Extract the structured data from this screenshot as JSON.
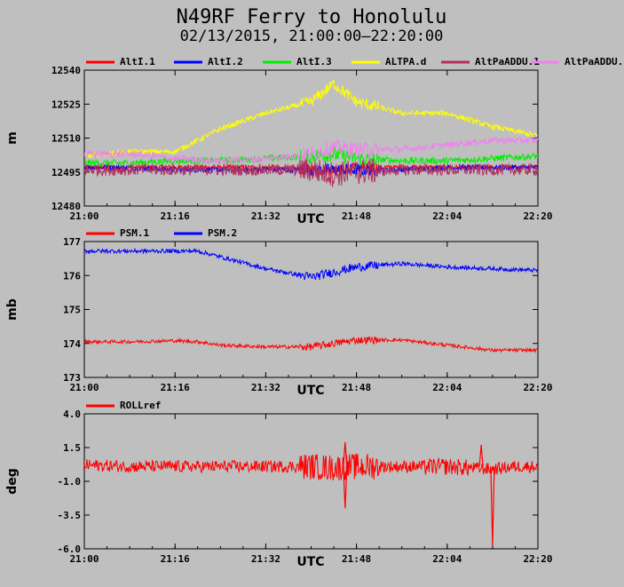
{
  "title": "N49RF Ferry to Honolulu",
  "subtitle": "02/13/2015, 21:00:00–22:20:00",
  "chart_data": [
    {
      "type": "line",
      "ylabel": "m",
      "xlabel": "UTC",
      "ylim": [
        12480,
        12540
      ],
      "yticks": [
        "12540",
        "12525",
        "12510",
        "12495",
        "12480"
      ],
      "xticks": [
        "21:00",
        "21:16",
        "21:32",
        "21:48",
        "22:04",
        "22:20"
      ],
      "x": [
        "21:00",
        "21:08",
        "21:16",
        "21:24",
        "21:32",
        "21:40",
        "21:44",
        "21:48",
        "21:56",
        "22:04",
        "22:12",
        "22:20"
      ],
      "series": [
        {
          "name": "AltI.1",
          "color": "#ff0000",
          "values": [
            12497,
            12497,
            12497,
            12497,
            12497,
            12496,
            12496,
            12497,
            12497,
            12497,
            12497,
            12497
          ]
        },
        {
          "name": "AltI.2",
          "color": "#0000ff",
          "values": [
            12497,
            12497,
            12496,
            12496,
            12496,
            12496,
            12496,
            12496,
            12496,
            12497,
            12497,
            12497
          ]
        },
        {
          "name": "AltI.3",
          "color": "#00ee00",
          "values": [
            12499,
            12499,
            12500,
            12500,
            12501,
            12502,
            12503,
            12501,
            12500,
            12500,
            12501,
            12502
          ]
        },
        {
          "name": "ALTPA.d",
          "color": "#ffff00",
          "values": [
            12502,
            12504,
            12504,
            12514,
            12521,
            12526,
            12534,
            12526,
            12521,
            12521,
            12515,
            12511
          ]
        },
        {
          "name": "AltPaADDU.1",
          "color": "#b03060",
          "values": [
            12496,
            12496,
            12496,
            12496,
            12496,
            12496,
            12494,
            12495,
            12496,
            12496,
            12496,
            12496
          ]
        },
        {
          "name": "AltPaADDU.",
          "color": "#ee82ee",
          "values": [
            12503,
            12503,
            12501,
            12500,
            12501,
            12503,
            12506,
            12505,
            12505,
            12507,
            12509,
            12509
          ]
        }
      ]
    },
    {
      "type": "line",
      "ylabel": "mb",
      "xlabel": "UTC",
      "ylim": [
        173,
        177
      ],
      "yticks": [
        "177",
        "176",
        "175",
        "174",
        "173"
      ],
      "xticks": [
        "21:00",
        "21:16",
        "21:32",
        "21:48",
        "22:04",
        "22:20"
      ],
      "x": [
        "21:00",
        "21:08",
        "21:16",
        "21:20",
        "21:24",
        "21:32",
        "21:40",
        "21:48",
        "21:56",
        "22:04",
        "22:12",
        "22:20"
      ],
      "series": [
        {
          "name": "PSM.1",
          "color": "#ff0000",
          "values": [
            174.05,
            174.05,
            174.08,
            174.05,
            173.95,
            173.9,
            173.9,
            174.1,
            174.1,
            173.95,
            173.8,
            173.8
          ]
        },
        {
          "name": "PSM.2",
          "color": "#0000ff",
          "values": [
            176.72,
            176.72,
            176.72,
            176.72,
            176.55,
            176.2,
            175.95,
            176.25,
            176.35,
            176.25,
            176.2,
            176.15
          ]
        }
      ]
    },
    {
      "type": "line",
      "ylabel": "deg",
      "xlabel": "UTC",
      "ylim": [
        -6.0,
        4.0
      ],
      "yticks": [
        "4.0",
        "1.5",
        "-1.0",
        "-3.5",
        "-6.0"
      ],
      "xticks": [
        "21:00",
        "21:16",
        "21:32",
        "21:48",
        "22:04",
        "22:20"
      ],
      "x": [
        "21:00",
        "21:08",
        "21:16",
        "21:24",
        "21:32",
        "21:40",
        "21:44",
        "21:48",
        "21:56",
        "22:04",
        "22:12",
        "22:16",
        "22:20"
      ],
      "series": [
        {
          "name": "ROLLref",
          "color": "#ff0000",
          "values": [
            0.2,
            0.1,
            0.1,
            0.1,
            0.1,
            0.1,
            0.0,
            0.1,
            0.1,
            0.1,
            -0.1,
            0.1,
            0.1
          ]
        }
      ],
      "annotations": {
        "min": [
          {
            "x": "22:12",
            "y": -5.8
          }
        ],
        "spikes": [
          {
            "x": "21:46",
            "y": 1.9
          },
          {
            "x": "21:46",
            "y": -3.0
          },
          {
            "x": "22:10",
            "y": 1.7
          }
        ]
      }
    }
  ]
}
